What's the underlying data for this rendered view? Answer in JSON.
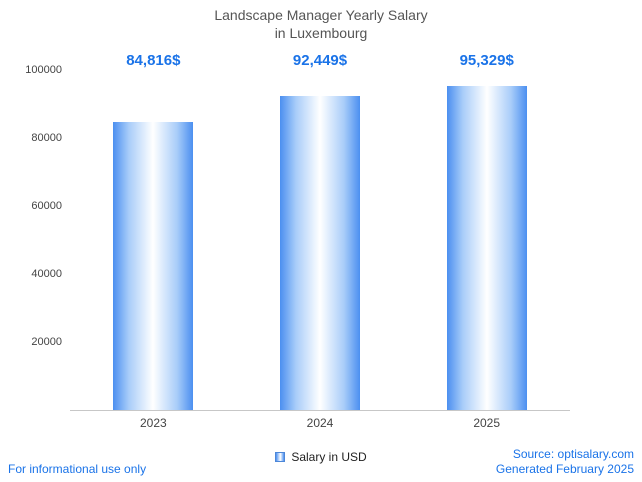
{
  "title": {
    "line1": "Landscape Manager Yearly Salary",
    "line2": "in Luxembourg"
  },
  "chart_data": {
    "type": "bar",
    "title": "Landscape Manager Yearly Salary in Luxembourg",
    "categories": [
      "2023",
      "2024",
      "2025"
    ],
    "values": [
      84816,
      92449,
      95329
    ],
    "value_labels": [
      "84,816$",
      "92,449$",
      "95,329$"
    ],
    "xlabel": "",
    "ylabel": "",
    "ylim": [
      0,
      100000
    ],
    "yticks": [
      20000,
      40000,
      60000,
      80000,
      100000
    ],
    "grid": false,
    "legend": {
      "label": "Salary in USD",
      "position": "bottom"
    },
    "bar_gradient": [
      "#4b8ff0",
      "#ffffff",
      "#4b8ff0"
    ]
  },
  "footer": {
    "disclaimer": "For informational use only",
    "source": "Source: optisalary.com",
    "generated": "Generated February 2025"
  },
  "colors": {
    "accent_blue": "#1a73e8",
    "bar_edge_blue": "#4b8ff0",
    "axis_text": "#444444",
    "title_text": "#555555",
    "baseline": "#c7c7c7"
  }
}
